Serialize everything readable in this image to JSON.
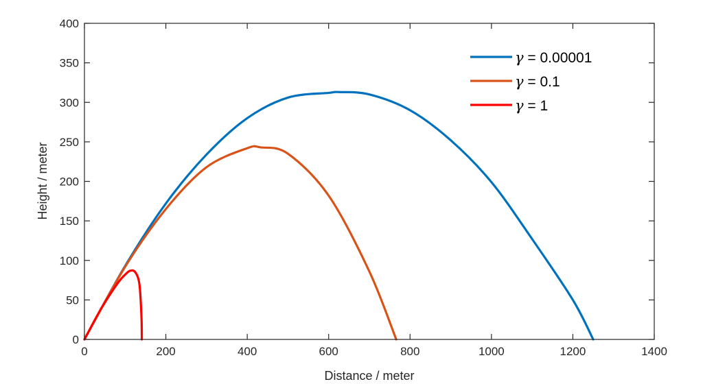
{
  "chart_data": {
    "type": "line",
    "title": "",
    "xlabel": "Distance / meter",
    "ylabel": "Height / meter",
    "xlim": [
      0,
      1400
    ],
    "ylim": [
      0,
      400
    ],
    "xticks": [
      0,
      200,
      400,
      600,
      800,
      1000,
      1200,
      1400
    ],
    "yticks": [
      0,
      50,
      100,
      150,
      200,
      250,
      300,
      350,
      400
    ],
    "grid": false,
    "legend_position": "upper right (inside)",
    "series": [
      {
        "name": "γ = 0.00001",
        "color": "#0072BD",
        "gamma": "0.00001",
        "x": [
          0,
          100,
          200,
          300,
          400,
          500,
          600,
          625,
          700,
          800,
          900,
          1000,
          1100,
          1200,
          1250
        ],
        "y": [
          0,
          93,
          172,
          234,
          280,
          306,
          312,
          313,
          310,
          290,
          252,
          199,
          127,
          50,
          0
        ]
      },
      {
        "name": "γ = 0.1",
        "color": "#D95319",
        "gamma": "0.1",
        "x": [
          0,
          100,
          200,
          300,
          400,
          433,
          500,
          600,
          700,
          766
        ],
        "y": [
          0,
          92,
          165,
          218,
          242,
          243,
          235,
          182,
          86,
          0
        ]
      },
      {
        "name": "γ = 1",
        "color": "#FF0000",
        "gamma": "1",
        "x": [
          0,
          40,
          80,
          100,
          113,
          125,
          135,
          140,
          141
        ],
        "y": [
          0,
          38,
          70,
          82,
          87,
          85,
          70,
          30,
          0
        ]
      }
    ]
  },
  "axes": {
    "xlabel": "Distance / meter",
    "ylabel": "Height / meter"
  },
  "legend": {
    "items": [
      {
        "symbol": "γ",
        "label": " = 0.00001",
        "color": "#0072BD"
      },
      {
        "symbol": "γ",
        "label": " = 0.1",
        "color": "#D95319"
      },
      {
        "symbol": "γ",
        "label": " = 1",
        "color": "#FF0000"
      }
    ]
  }
}
